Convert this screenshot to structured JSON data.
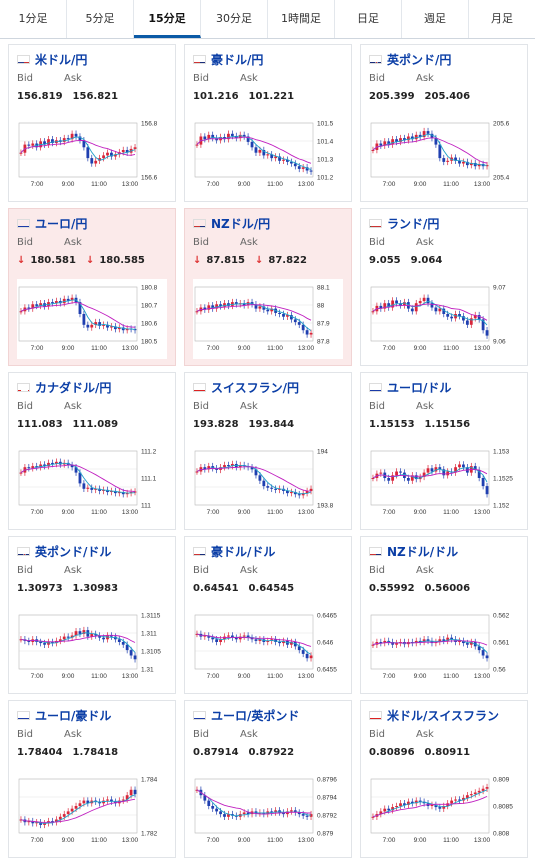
{
  "tabs": [
    {
      "label": "1分足",
      "active": false
    },
    {
      "label": "5分足",
      "active": false
    },
    {
      "label": "15分足",
      "active": true
    },
    {
      "label": "30分足",
      "active": false
    },
    {
      "label": "1時間足",
      "active": false
    },
    {
      "label": "日足",
      "active": false
    },
    {
      "label": "週足",
      "active": false
    },
    {
      "label": "月足",
      "active": false
    }
  ],
  "labels": {
    "bid": "Bid",
    "ask": "Ask"
  },
  "time_ticks": [
    "7:00",
    "9:00",
    "11:00",
    "13:00"
  ],
  "cards": [
    {
      "title": "米ドル/円",
      "flag": "us",
      "bid": "156.819",
      "ask": "156.821",
      "down": false,
      "highlight": false,
      "yticks": [
        "156.8",
        "156.6"
      ],
      "series": [
        0.45,
        0.6,
        0.58,
        0.62,
        0.55,
        0.66,
        0.6,
        0.7,
        0.63,
        0.68,
        0.65,
        0.72,
        0.7,
        0.8,
        0.75,
        0.68,
        0.55,
        0.35,
        0.25,
        0.3,
        0.35,
        0.4,
        0.45,
        0.38,
        0.42,
        0.46,
        0.5,
        0.45,
        0.52,
        0.55
      ]
    },
    {
      "title": "豪ドル/円",
      "flag": "au",
      "bid": "101.216",
      "ask": "101.221",
      "down": false,
      "highlight": false,
      "yticks": [
        "101.5",
        "101.4",
        "101.3",
        "101.2"
      ],
      "series": [
        0.6,
        0.75,
        0.7,
        0.78,
        0.72,
        0.68,
        0.74,
        0.7,
        0.8,
        0.76,
        0.72,
        0.78,
        0.75,
        0.65,
        0.55,
        0.45,
        0.5,
        0.4,
        0.42,
        0.35,
        0.38,
        0.3,
        0.32,
        0.28,
        0.25,
        0.2,
        0.15,
        0.18,
        0.12,
        0.1
      ]
    },
    {
      "title": "英ポンド/円",
      "flag": "gb",
      "bid": "205.399",
      "ask": "205.406",
      "down": false,
      "highlight": false,
      "yticks": [
        "205.6",
        "205.4"
      ],
      "series": [
        0.5,
        0.62,
        0.58,
        0.66,
        0.6,
        0.7,
        0.65,
        0.72,
        0.68,
        0.75,
        0.7,
        0.78,
        0.74,
        0.85,
        0.8,
        0.72,
        0.6,
        0.35,
        0.28,
        0.3,
        0.36,
        0.3,
        0.25,
        0.28,
        0.22,
        0.26,
        0.2,
        0.24,
        0.2,
        0.22
      ]
    },
    {
      "title": "ユーロ/円",
      "flag": "eu",
      "bid": "180.581",
      "ask": "180.585",
      "down": true,
      "highlight": true,
      "yticks": [
        "180.8",
        "180.7",
        "180.6",
        "180.5"
      ],
      "series": [
        0.55,
        0.62,
        0.6,
        0.68,
        0.65,
        0.7,
        0.64,
        0.72,
        0.7,
        0.74,
        0.7,
        0.78,
        0.75,
        0.8,
        0.72,
        0.5,
        0.3,
        0.25,
        0.3,
        0.35,
        0.28,
        0.3,
        0.25,
        0.27,
        0.22,
        0.25,
        0.2,
        0.23,
        0.22,
        0.2
      ]
    },
    {
      "title": "NZドル/円",
      "flag": "nz",
      "bid": "87.815",
      "ask": "87.822",
      "down": true,
      "highlight": true,
      "yticks": [
        "88.1",
        "88",
        "87.9",
        "87.8"
      ],
      "series": [
        0.55,
        0.62,
        0.58,
        0.66,
        0.6,
        0.68,
        0.64,
        0.7,
        0.65,
        0.72,
        0.68,
        0.7,
        0.66,
        0.72,
        0.68,
        0.6,
        0.64,
        0.58,
        0.55,
        0.6,
        0.52,
        0.5,
        0.45,
        0.48,
        0.4,
        0.35,
        0.3,
        0.2,
        0.12,
        0.15
      ]
    },
    {
      "title": "ランド/円",
      "flag": "za",
      "bid": "9.055",
      "ask": "9.064",
      "down": false,
      "highlight": false,
      "yticks": [
        "9.07",
        "9.06"
      ],
      "series": [
        0.55,
        0.65,
        0.6,
        0.7,
        0.62,
        0.75,
        0.7,
        0.66,
        0.72,
        0.6,
        0.55,
        0.7,
        0.74,
        0.8,
        0.7,
        0.62,
        0.55,
        0.6,
        0.5,
        0.45,
        0.42,
        0.5,
        0.46,
        0.38,
        0.3,
        0.42,
        0.48,
        0.4,
        0.2,
        0.1
      ]
    },
    {
      "title": "カナダドル/円",
      "flag": "ca",
      "bid": "111.083",
      "ask": "111.089",
      "down": false,
      "highlight": false,
      "yticks": [
        "111.2",
        "111.1",
        "111"
      ],
      "series": [
        0.6,
        0.7,
        0.68,
        0.72,
        0.7,
        0.75,
        0.72,
        0.78,
        0.76,
        0.8,
        0.75,
        0.78,
        0.74,
        0.7,
        0.6,
        0.4,
        0.3,
        0.32,
        0.28,
        0.3,
        0.26,
        0.28,
        0.24,
        0.26,
        0.22,
        0.24,
        0.2,
        0.22,
        0.24,
        0.25
      ]
    },
    {
      "title": "スイスフラン/円",
      "flag": "ch",
      "bid": "193.828",
      "ask": "193.844",
      "down": false,
      "highlight": false,
      "yticks": [
        "194",
        "193.8"
      ],
      "series": [
        0.62,
        0.7,
        0.66,
        0.72,
        0.68,
        0.65,
        0.7,
        0.74,
        0.72,
        0.76,
        0.7,
        0.74,
        0.72,
        0.7,
        0.66,
        0.55,
        0.45,
        0.35,
        0.32,
        0.3,
        0.28,
        0.3,
        0.26,
        0.22,
        0.24,
        0.2,
        0.18,
        0.22,
        0.26,
        0.3
      ]
    },
    {
      "title": "ユーロ/ドル",
      "flag": "eu",
      "bid": "1.15153",
      "ask": "1.15156",
      "down": false,
      "highlight": false,
      "yticks": [
        "1.153",
        "1.1525",
        "1.152"
      ],
      "series": [
        0.5,
        0.58,
        0.6,
        0.5,
        0.45,
        0.55,
        0.62,
        0.6,
        0.5,
        0.45,
        0.55,
        0.48,
        0.52,
        0.6,
        0.68,
        0.62,
        0.7,
        0.66,
        0.55,
        0.62,
        0.6,
        0.7,
        0.75,
        0.7,
        0.6,
        0.72,
        0.65,
        0.5,
        0.35,
        0.2
      ]
    },
    {
      "title": "英ポンド/ドル",
      "flag": "gb",
      "bid": "1.30973",
      "ask": "1.30983",
      "down": false,
      "highlight": false,
      "yticks": [
        "1.3115",
        "1.311",
        "1.3105",
        "1.31"
      ],
      "series": [
        0.55,
        0.52,
        0.5,
        0.55,
        0.5,
        0.48,
        0.45,
        0.5,
        0.48,
        0.52,
        0.55,
        0.6,
        0.58,
        0.62,
        0.7,
        0.65,
        0.72,
        0.6,
        0.65,
        0.62,
        0.58,
        0.55,
        0.62,
        0.6,
        0.55,
        0.5,
        0.45,
        0.35,
        0.25,
        0.18
      ]
    },
    {
      "title": "豪ドル/ドル",
      "flag": "au",
      "bid": "0.64541",
      "ask": "0.64545",
      "down": false,
      "highlight": false,
      "yticks": [
        "0.6465",
        "0.646",
        "0.6455"
      ],
      "series": [
        0.65,
        0.6,
        0.62,
        0.58,
        0.55,
        0.5,
        0.55,
        0.6,
        0.62,
        0.58,
        0.55,
        0.6,
        0.62,
        0.58,
        0.55,
        0.52,
        0.55,
        0.5,
        0.52,
        0.55,
        0.5,
        0.48,
        0.52,
        0.45,
        0.5,
        0.42,
        0.35,
        0.28,
        0.2,
        0.25
      ]
    },
    {
      "title": "NZドル/ドル",
      "flag": "nz",
      "bid": "0.55992",
      "ask": "0.56006",
      "down": false,
      "highlight": false,
      "yticks": [
        "0.562",
        "0.561",
        "0.56"
      ],
      "series": [
        0.45,
        0.5,
        0.48,
        0.52,
        0.5,
        0.45,
        0.48,
        0.5,
        0.46,
        0.5,
        0.48,
        0.52,
        0.5,
        0.55,
        0.52,
        0.48,
        0.5,
        0.55,
        0.52,
        0.58,
        0.55,
        0.5,
        0.52,
        0.48,
        0.45,
        0.5,
        0.42,
        0.35,
        0.25,
        0.2
      ]
    },
    {
      "title": "ユーロ/豪ドル",
      "flag": "eu",
      "bid": "1.78404",
      "ask": "1.78418",
      "down": false,
      "highlight": false,
      "yticks": [
        "1.784",
        "1.782"
      ],
      "series": [
        0.25,
        0.2,
        0.22,
        0.18,
        0.2,
        0.15,
        0.18,
        0.22,
        0.2,
        0.25,
        0.3,
        0.35,
        0.4,
        0.45,
        0.5,
        0.55,
        0.6,
        0.55,
        0.6,
        0.58,
        0.55,
        0.6,
        0.62,
        0.58,
        0.55,
        0.6,
        0.62,
        0.7,
        0.8,
        0.72
      ]
    },
    {
      "title": "ユーロ/英ポンド",
      "flag": "eu",
      "bid": "0.87914",
      "ask": "0.87922",
      "down": false,
      "highlight": false,
      "yticks": [
        "0.8796",
        "0.8794",
        "0.8792",
        "0.879"
      ],
      "series": [
        0.8,
        0.7,
        0.6,
        0.5,
        0.45,
        0.4,
        0.35,
        0.3,
        0.35,
        0.32,
        0.3,
        0.35,
        0.38,
        0.35,
        0.4,
        0.36,
        0.38,
        0.35,
        0.4,
        0.38,
        0.42,
        0.38,
        0.35,
        0.4,
        0.42,
        0.38,
        0.35,
        0.32,
        0.3,
        0.35
      ]
    },
    {
      "title": "米ドル/スイスフラン",
      "flag": "ch",
      "bid": "0.80896",
      "ask": "0.80911",
      "down": false,
      "highlight": false,
      "yticks": [
        "0.809",
        "0.8085",
        "0.808"
      ],
      "series": [
        0.3,
        0.35,
        0.4,
        0.45,
        0.42,
        0.48,
        0.5,
        0.55,
        0.52,
        0.58,
        0.55,
        0.6,
        0.58,
        0.55,
        0.5,
        0.52,
        0.48,
        0.45,
        0.5,
        0.55,
        0.6,
        0.62,
        0.6,
        0.65,
        0.7,
        0.72,
        0.75,
        0.78,
        0.82,
        0.85
      ]
    }
  ]
}
